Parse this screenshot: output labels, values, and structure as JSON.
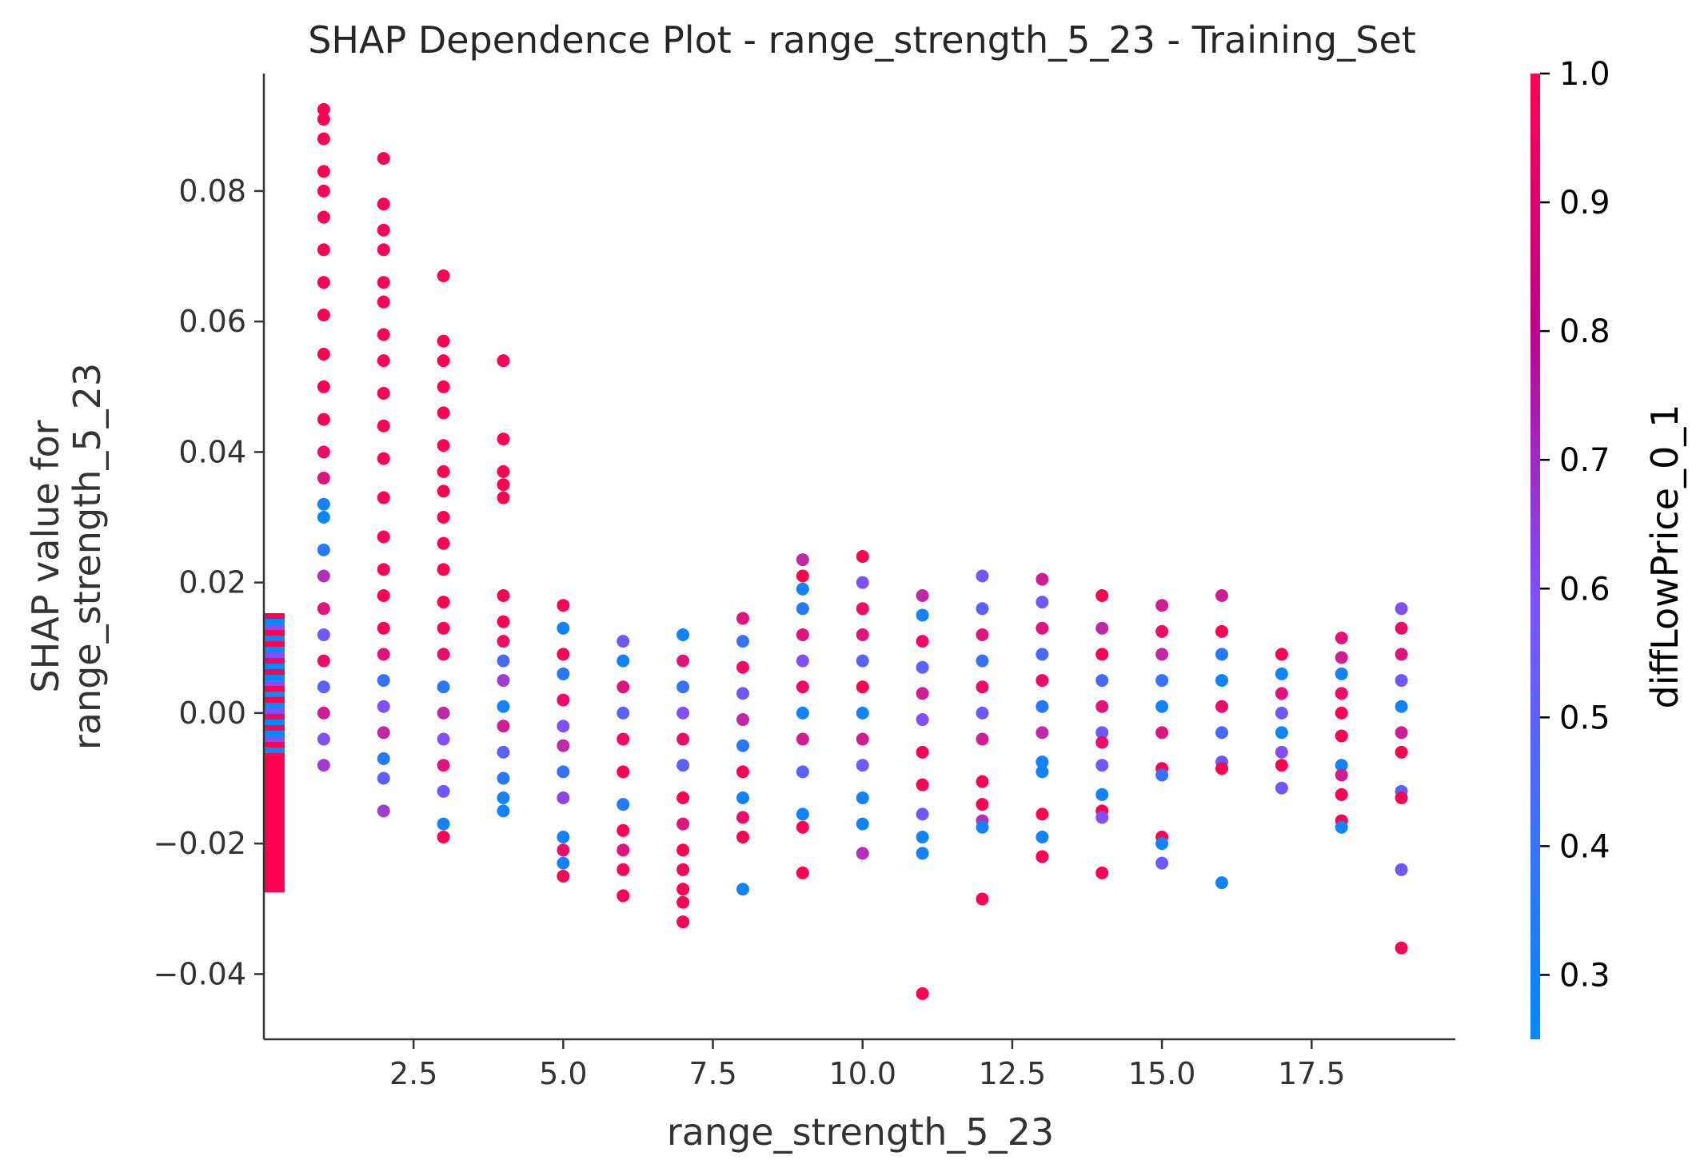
{
  "chart_data": {
    "type": "scatter",
    "title": "SHAP Dependence Plot - range_strength_5_23 - Training_Set",
    "xlabel": "range_strength_5_23",
    "ylabel_lines": [
      "SHAP value for",
      "range_strength_5_23"
    ],
    "xlim": [
      0,
      19.9
    ],
    "ylim": [
      -0.05,
      0.098
    ],
    "x_ticks": [
      2.5,
      5.0,
      7.5,
      10.0,
      12.5,
      15.0,
      17.5
    ],
    "x_tick_labels": [
      "2.5",
      "5.0",
      "7.5",
      "10.0",
      "12.5",
      "15.0",
      "17.5"
    ],
    "y_ticks": [
      0.08,
      0.06,
      0.04,
      0.02,
      0.0,
      -0.02,
      -0.04
    ],
    "y_tick_labels": [
      "0.08",
      "0.06",
      "0.04",
      "0.02",
      "0.00",
      "−0.02",
      "−0.04"
    ],
    "colorbar": {
      "label": "diffLowPrice_0_1",
      "range": [
        0.25,
        1.0
      ],
      "ticks": [
        1.0,
        0.9,
        0.8,
        0.7,
        0.6,
        0.5,
        0.4,
        0.3
      ],
      "tick_labels": [
        "1.0",
        "0.9",
        "0.8",
        "0.7",
        "0.6",
        "0.5",
        "0.4",
        "0.3"
      ],
      "low_color": "#008bfb",
      "mid_color": "#7c52ff",
      "high_color": "#ff0052"
    },
    "zero_band": {
      "x": 0,
      "ymin": -0.0275,
      "ymax": 0.0153,
      "upper_stripe_min": -0.0065,
      "lower_color": "#ff0052"
    },
    "points": [
      {
        "x": 1,
        "y": 0.0925,
        "c": 1.0
      },
      {
        "x": 1,
        "y": 0.091,
        "c": 1.0
      },
      {
        "x": 1,
        "y": 0.088,
        "c": 1.0
      },
      {
        "x": 1,
        "y": 0.083,
        "c": 1.0
      },
      {
        "x": 1,
        "y": 0.08,
        "c": 1.0
      },
      {
        "x": 1,
        "y": 0.076,
        "c": 1.0
      },
      {
        "x": 1,
        "y": 0.071,
        "c": 1.0
      },
      {
        "x": 1,
        "y": 0.066,
        "c": 1.0
      },
      {
        "x": 1,
        "y": 0.061,
        "c": 1.0
      },
      {
        "x": 1,
        "y": 0.055,
        "c": 1.0
      },
      {
        "x": 1,
        "y": 0.05,
        "c": 1.0
      },
      {
        "x": 1,
        "y": 0.045,
        "c": 1.0
      },
      {
        "x": 1,
        "y": 0.04,
        "c": 0.95
      },
      {
        "x": 1,
        "y": 0.036,
        "c": 0.9
      },
      {
        "x": 1,
        "y": 0.032,
        "c": 0.3
      },
      {
        "x": 1,
        "y": 0.03,
        "c": 0.28
      },
      {
        "x": 1,
        "y": 0.025,
        "c": 0.35
      },
      {
        "x": 1,
        "y": 0.021,
        "c": 0.75
      },
      {
        "x": 1,
        "y": 0.016,
        "c": 0.9
      },
      {
        "x": 1,
        "y": 0.012,
        "c": 0.55
      },
      {
        "x": 1,
        "y": 0.008,
        "c": 0.95
      },
      {
        "x": 1,
        "y": 0.004,
        "c": 0.5
      },
      {
        "x": 1,
        "y": 0.0,
        "c": 0.85
      },
      {
        "x": 1,
        "y": -0.004,
        "c": 0.6
      },
      {
        "x": 1,
        "y": -0.008,
        "c": 0.7
      },
      {
        "x": 2,
        "y": 0.085,
        "c": 1.0
      },
      {
        "x": 2,
        "y": 0.078,
        "c": 1.0
      },
      {
        "x": 2,
        "y": 0.074,
        "c": 1.0
      },
      {
        "x": 2,
        "y": 0.071,
        "c": 1.0
      },
      {
        "x": 2,
        "y": 0.066,
        "c": 1.0
      },
      {
        "x": 2,
        "y": 0.063,
        "c": 1.0
      },
      {
        "x": 2,
        "y": 0.058,
        "c": 1.0
      },
      {
        "x": 2,
        "y": 0.054,
        "c": 1.0
      },
      {
        "x": 2,
        "y": 0.049,
        "c": 1.0
      },
      {
        "x": 2,
        "y": 0.044,
        "c": 1.0
      },
      {
        "x": 2,
        "y": 0.039,
        "c": 1.0
      },
      {
        "x": 2,
        "y": 0.033,
        "c": 1.0
      },
      {
        "x": 2,
        "y": 0.027,
        "c": 1.0
      },
      {
        "x": 2,
        "y": 0.022,
        "c": 1.0
      },
      {
        "x": 2,
        "y": 0.018,
        "c": 1.0
      },
      {
        "x": 2,
        "y": 0.013,
        "c": 1.0
      },
      {
        "x": 2,
        "y": 0.009,
        "c": 0.9
      },
      {
        "x": 2,
        "y": 0.005,
        "c": 0.4
      },
      {
        "x": 2,
        "y": 0.001,
        "c": 0.6
      },
      {
        "x": 2,
        "y": -0.003,
        "c": 0.8
      },
      {
        "x": 2,
        "y": -0.007,
        "c": 0.35
      },
      {
        "x": 2,
        "y": -0.01,
        "c": 0.5
      },
      {
        "x": 2,
        "y": -0.015,
        "c": 0.7
      },
      {
        "x": 3,
        "y": 0.067,
        "c": 1.0
      },
      {
        "x": 3,
        "y": 0.057,
        "c": 1.0
      },
      {
        "x": 3,
        "y": 0.054,
        "c": 1.0
      },
      {
        "x": 3,
        "y": 0.05,
        "c": 1.0
      },
      {
        "x": 3,
        "y": 0.046,
        "c": 1.0
      },
      {
        "x": 3,
        "y": 0.041,
        "c": 1.0
      },
      {
        "x": 3,
        "y": 0.037,
        "c": 1.0
      },
      {
        "x": 3,
        "y": 0.034,
        "c": 1.0
      },
      {
        "x": 3,
        "y": 0.03,
        "c": 1.0
      },
      {
        "x": 3,
        "y": 0.026,
        "c": 1.0
      },
      {
        "x": 3,
        "y": 0.022,
        "c": 1.0
      },
      {
        "x": 3,
        "y": 0.017,
        "c": 1.0
      },
      {
        "x": 3,
        "y": 0.013,
        "c": 1.0
      },
      {
        "x": 3,
        "y": 0.009,
        "c": 0.95
      },
      {
        "x": 3,
        "y": 0.004,
        "c": 0.35
      },
      {
        "x": 3,
        "y": 0.0,
        "c": 0.8
      },
      {
        "x": 3,
        "y": -0.004,
        "c": 0.6
      },
      {
        "x": 3,
        "y": -0.008,
        "c": 0.9
      },
      {
        "x": 3,
        "y": -0.012,
        "c": 0.55
      },
      {
        "x": 3,
        "y": -0.017,
        "c": 0.3
      },
      {
        "x": 3,
        "y": -0.019,
        "c": 1.0
      },
      {
        "x": 4,
        "y": 0.054,
        "c": 1.0
      },
      {
        "x": 4,
        "y": 0.042,
        "c": 1.0
      },
      {
        "x": 4,
        "y": 0.037,
        "c": 1.0
      },
      {
        "x": 4,
        "y": 0.035,
        "c": 1.0
      },
      {
        "x": 4,
        "y": 0.033,
        "c": 1.0
      },
      {
        "x": 4,
        "y": 0.018,
        "c": 1.0
      },
      {
        "x": 4,
        "y": 0.014,
        "c": 1.0
      },
      {
        "x": 4,
        "y": 0.011,
        "c": 0.95
      },
      {
        "x": 4,
        "y": 0.008,
        "c": 0.45
      },
      {
        "x": 4,
        "y": 0.005,
        "c": 0.7
      },
      {
        "x": 4,
        "y": 0.001,
        "c": 0.3
      },
      {
        "x": 4,
        "y": -0.002,
        "c": 0.85
      },
      {
        "x": 4,
        "y": -0.006,
        "c": 0.5
      },
      {
        "x": 4,
        "y": -0.01,
        "c": 0.35
      },
      {
        "x": 4,
        "y": -0.013,
        "c": 0.3
      },
      {
        "x": 4,
        "y": -0.015,
        "c": 0.3
      },
      {
        "x": 5,
        "y": 0.0165,
        "c": 1.0
      },
      {
        "x": 5,
        "y": 0.013,
        "c": 0.3
      },
      {
        "x": 5,
        "y": 0.009,
        "c": 1.0
      },
      {
        "x": 5,
        "y": 0.006,
        "c": 0.35
      },
      {
        "x": 5,
        "y": 0.002,
        "c": 0.95
      },
      {
        "x": 5,
        "y": -0.002,
        "c": 0.6
      },
      {
        "x": 5,
        "y": -0.005,
        "c": 0.8
      },
      {
        "x": 5,
        "y": -0.009,
        "c": 0.4
      },
      {
        "x": 5,
        "y": -0.013,
        "c": 0.65
      },
      {
        "x": 5,
        "y": -0.019,
        "c": 0.3
      },
      {
        "x": 5,
        "y": -0.021,
        "c": 0.95
      },
      {
        "x": 5,
        "y": -0.023,
        "c": 0.3
      },
      {
        "x": 5,
        "y": -0.025,
        "c": 1.0
      },
      {
        "x": 6,
        "y": 0.011,
        "c": 0.55
      },
      {
        "x": 6,
        "y": 0.008,
        "c": 0.3
      },
      {
        "x": 6,
        "y": 0.004,
        "c": 0.9
      },
      {
        "x": 6,
        "y": 0.0,
        "c": 0.5
      },
      {
        "x": 6,
        "y": -0.004,
        "c": 0.95
      },
      {
        "x": 6,
        "y": -0.009,
        "c": 1.0
      },
      {
        "x": 6,
        "y": -0.014,
        "c": 0.35
      },
      {
        "x": 6,
        "y": -0.018,
        "c": 1.0
      },
      {
        "x": 6,
        "y": -0.021,
        "c": 0.9
      },
      {
        "x": 6,
        "y": -0.024,
        "c": 1.0
      },
      {
        "x": 6,
        "y": -0.028,
        "c": 1.0
      },
      {
        "x": 7,
        "y": 0.012,
        "c": 0.3
      },
      {
        "x": 7,
        "y": 0.008,
        "c": 0.9
      },
      {
        "x": 7,
        "y": 0.004,
        "c": 0.4
      },
      {
        "x": 7,
        "y": 0.0,
        "c": 0.6
      },
      {
        "x": 7,
        "y": -0.004,
        "c": 0.95
      },
      {
        "x": 7,
        "y": -0.008,
        "c": 0.5
      },
      {
        "x": 7,
        "y": -0.013,
        "c": 1.0
      },
      {
        "x": 7,
        "y": -0.017,
        "c": 0.9
      },
      {
        "x": 7,
        "y": -0.021,
        "c": 1.0
      },
      {
        "x": 7,
        "y": -0.024,
        "c": 1.0
      },
      {
        "x": 7,
        "y": -0.027,
        "c": 1.0
      },
      {
        "x": 7,
        "y": -0.029,
        "c": 1.0
      },
      {
        "x": 7,
        "y": -0.032,
        "c": 1.0
      },
      {
        "x": 8,
        "y": 0.0145,
        "c": 0.9
      },
      {
        "x": 8,
        "y": 0.011,
        "c": 0.4
      },
      {
        "x": 8,
        "y": 0.007,
        "c": 0.95
      },
      {
        "x": 8,
        "y": 0.003,
        "c": 0.55
      },
      {
        "x": 8,
        "y": -0.001,
        "c": 0.8
      },
      {
        "x": 8,
        "y": -0.005,
        "c": 0.35
      },
      {
        "x": 8,
        "y": -0.009,
        "c": 1.0
      },
      {
        "x": 8,
        "y": -0.013,
        "c": 0.3
      },
      {
        "x": 8,
        "y": -0.016,
        "c": 0.95
      },
      {
        "x": 8,
        "y": -0.019,
        "c": 1.0
      },
      {
        "x": 8,
        "y": -0.027,
        "c": 0.3
      },
      {
        "x": 9,
        "y": 0.0235,
        "c": 0.8
      },
      {
        "x": 9,
        "y": 0.021,
        "c": 1.0
      },
      {
        "x": 9,
        "y": 0.019,
        "c": 0.3
      },
      {
        "x": 9,
        "y": 0.016,
        "c": 0.35
      },
      {
        "x": 9,
        "y": 0.012,
        "c": 0.9
      },
      {
        "x": 9,
        "y": 0.008,
        "c": 0.6
      },
      {
        "x": 9,
        "y": 0.004,
        "c": 0.95
      },
      {
        "x": 9,
        "y": 0.0,
        "c": 0.3
      },
      {
        "x": 9,
        "y": -0.004,
        "c": 0.85
      },
      {
        "x": 9,
        "y": -0.009,
        "c": 0.5
      },
      {
        "x": 9,
        "y": -0.0155,
        "c": 0.3
      },
      {
        "x": 9,
        "y": -0.0175,
        "c": 1.0
      },
      {
        "x": 9,
        "y": -0.0245,
        "c": 1.0
      },
      {
        "x": 10,
        "y": 0.024,
        "c": 1.0
      },
      {
        "x": 10,
        "y": 0.02,
        "c": 0.6
      },
      {
        "x": 10,
        "y": 0.016,
        "c": 0.95
      },
      {
        "x": 10,
        "y": 0.012,
        "c": 0.9
      },
      {
        "x": 10,
        "y": 0.008,
        "c": 0.5
      },
      {
        "x": 10,
        "y": 0.004,
        "c": 1.0
      },
      {
        "x": 10,
        "y": 0.0,
        "c": 0.3
      },
      {
        "x": 10,
        "y": -0.004,
        "c": 0.85
      },
      {
        "x": 10,
        "y": -0.008,
        "c": 0.55
      },
      {
        "x": 10,
        "y": -0.013,
        "c": 0.3
      },
      {
        "x": 10,
        "y": -0.017,
        "c": 0.3
      },
      {
        "x": 10,
        "y": -0.0215,
        "c": 0.75
      },
      {
        "x": 11,
        "y": 0.018,
        "c": 0.8
      },
      {
        "x": 11,
        "y": 0.015,
        "c": 0.3
      },
      {
        "x": 11,
        "y": 0.011,
        "c": 0.95
      },
      {
        "x": 11,
        "y": 0.007,
        "c": 0.5
      },
      {
        "x": 11,
        "y": 0.003,
        "c": 0.85
      },
      {
        "x": 11,
        "y": -0.001,
        "c": 0.6
      },
      {
        "x": 11,
        "y": -0.006,
        "c": 1.0
      },
      {
        "x": 11,
        "y": -0.011,
        "c": 1.0
      },
      {
        "x": 11,
        "y": -0.0155,
        "c": 0.55
      },
      {
        "x": 11,
        "y": -0.019,
        "c": 0.3
      },
      {
        "x": 11,
        "y": -0.0215,
        "c": 0.3
      },
      {
        "x": 11,
        "y": -0.043,
        "c": 1.0
      },
      {
        "x": 12,
        "y": 0.021,
        "c": 0.55
      },
      {
        "x": 12,
        "y": 0.016,
        "c": 0.5
      },
      {
        "x": 12,
        "y": 0.012,
        "c": 0.9
      },
      {
        "x": 12,
        "y": 0.008,
        "c": 0.4
      },
      {
        "x": 12,
        "y": 0.004,
        "c": 0.95
      },
      {
        "x": 12,
        "y": 0.0,
        "c": 0.55
      },
      {
        "x": 12,
        "y": -0.004,
        "c": 0.85
      },
      {
        "x": 12,
        "y": -0.0105,
        "c": 1.0
      },
      {
        "x": 12,
        "y": -0.014,
        "c": 1.0
      },
      {
        "x": 12,
        "y": -0.0165,
        "c": 0.75
      },
      {
        "x": 12,
        "y": -0.0175,
        "c": 0.3
      },
      {
        "x": 12,
        "y": -0.0285,
        "c": 1.0
      },
      {
        "x": 13,
        "y": 0.0205,
        "c": 0.85
      },
      {
        "x": 13,
        "y": 0.017,
        "c": 0.55
      },
      {
        "x": 13,
        "y": 0.013,
        "c": 0.9
      },
      {
        "x": 13,
        "y": 0.009,
        "c": 0.45
      },
      {
        "x": 13,
        "y": 0.005,
        "c": 0.95
      },
      {
        "x": 13,
        "y": 0.001,
        "c": 0.35
      },
      {
        "x": 13,
        "y": -0.003,
        "c": 0.8
      },
      {
        "x": 13,
        "y": -0.0075,
        "c": 0.3
      },
      {
        "x": 13,
        "y": -0.009,
        "c": 0.3
      },
      {
        "x": 13,
        "y": -0.0155,
        "c": 1.0
      },
      {
        "x": 13,
        "y": -0.019,
        "c": 0.3
      },
      {
        "x": 13,
        "y": -0.022,
        "c": 1.0
      },
      {
        "x": 14,
        "y": 0.018,
        "c": 1.0
      },
      {
        "x": 14,
        "y": 0.013,
        "c": 0.8
      },
      {
        "x": 14,
        "y": 0.009,
        "c": 1.0
      },
      {
        "x": 14,
        "y": 0.005,
        "c": 0.45
      },
      {
        "x": 14,
        "y": 0.001,
        "c": 0.9
      },
      {
        "x": 14,
        "y": -0.003,
        "c": 0.55
      },
      {
        "x": 14,
        "y": -0.0045,
        "c": 0.95
      },
      {
        "x": 14,
        "y": -0.008,
        "c": 0.55
      },
      {
        "x": 14,
        "y": -0.0125,
        "c": 0.3
      },
      {
        "x": 14,
        "y": -0.015,
        "c": 1.0
      },
      {
        "x": 14,
        "y": -0.016,
        "c": 0.6
      },
      {
        "x": 14,
        "y": -0.0245,
        "c": 1.0
      },
      {
        "x": 15,
        "y": 0.0165,
        "c": 0.85
      },
      {
        "x": 15,
        "y": 0.0125,
        "c": 0.95
      },
      {
        "x": 15,
        "y": 0.009,
        "c": 0.8
      },
      {
        "x": 15,
        "y": 0.005,
        "c": 0.4
      },
      {
        "x": 15,
        "y": 0.001,
        "c": 0.3
      },
      {
        "x": 15,
        "y": -0.003,
        "c": 0.9
      },
      {
        "x": 15,
        "y": -0.0085,
        "c": 1.0
      },
      {
        "x": 15,
        "y": -0.0095,
        "c": 0.4
      },
      {
        "x": 15,
        "y": -0.019,
        "c": 1.0
      },
      {
        "x": 15,
        "y": -0.02,
        "c": 0.3
      },
      {
        "x": 15,
        "y": -0.023,
        "c": 0.55
      },
      {
        "x": 16,
        "y": 0.018,
        "c": 0.85
      },
      {
        "x": 16,
        "y": 0.0125,
        "c": 1.0
      },
      {
        "x": 16,
        "y": 0.009,
        "c": 0.35
      },
      {
        "x": 16,
        "y": 0.005,
        "c": 0.3
      },
      {
        "x": 16,
        "y": 0.001,
        "c": 0.95
      },
      {
        "x": 16,
        "y": -0.003,
        "c": 0.45
      },
      {
        "x": 16,
        "y": -0.0075,
        "c": 0.55
      },
      {
        "x": 16,
        "y": -0.0085,
        "c": 1.0
      },
      {
        "x": 16,
        "y": -0.026,
        "c": 0.3
      },
      {
        "x": 17,
        "y": 0.009,
        "c": 1.0
      },
      {
        "x": 17,
        "y": 0.006,
        "c": 0.3
      },
      {
        "x": 17,
        "y": 0.003,
        "c": 0.9
      },
      {
        "x": 17,
        "y": 0.0,
        "c": 0.55
      },
      {
        "x": 17,
        "y": -0.003,
        "c": 0.3
      },
      {
        "x": 17,
        "y": -0.006,
        "c": 0.6
      },
      {
        "x": 17,
        "y": -0.008,
        "c": 1.0
      },
      {
        "x": 17,
        "y": -0.0115,
        "c": 0.55
      },
      {
        "x": 18,
        "y": 0.0115,
        "c": 0.9
      },
      {
        "x": 18,
        "y": 0.0085,
        "c": 0.85
      },
      {
        "x": 18,
        "y": 0.006,
        "c": 0.3
      },
      {
        "x": 18,
        "y": 0.003,
        "c": 0.95
      },
      {
        "x": 18,
        "y": 0.0,
        "c": 1.0
      },
      {
        "x": 18,
        "y": -0.0035,
        "c": 1.0
      },
      {
        "x": 18,
        "y": -0.008,
        "c": 0.3
      },
      {
        "x": 18,
        "y": -0.0095,
        "c": 0.85
      },
      {
        "x": 18,
        "y": -0.0125,
        "c": 1.0
      },
      {
        "x": 18,
        "y": -0.0165,
        "c": 1.0
      },
      {
        "x": 18,
        "y": -0.0175,
        "c": 0.3
      },
      {
        "x": 19,
        "y": 0.016,
        "c": 0.6
      },
      {
        "x": 19,
        "y": 0.013,
        "c": 0.95
      },
      {
        "x": 19,
        "y": 0.009,
        "c": 0.9
      },
      {
        "x": 19,
        "y": 0.005,
        "c": 0.55
      },
      {
        "x": 19,
        "y": 0.001,
        "c": 0.3
      },
      {
        "x": 19,
        "y": -0.003,
        "c": 0.85
      },
      {
        "x": 19,
        "y": -0.006,
        "c": 1.0
      },
      {
        "x": 19,
        "y": -0.012,
        "c": 0.5
      },
      {
        "x": 19,
        "y": -0.013,
        "c": 1.0
      },
      {
        "x": 19,
        "y": -0.024,
        "c": 0.55
      },
      {
        "x": 19,
        "y": -0.036,
        "c": 1.0
      }
    ]
  }
}
